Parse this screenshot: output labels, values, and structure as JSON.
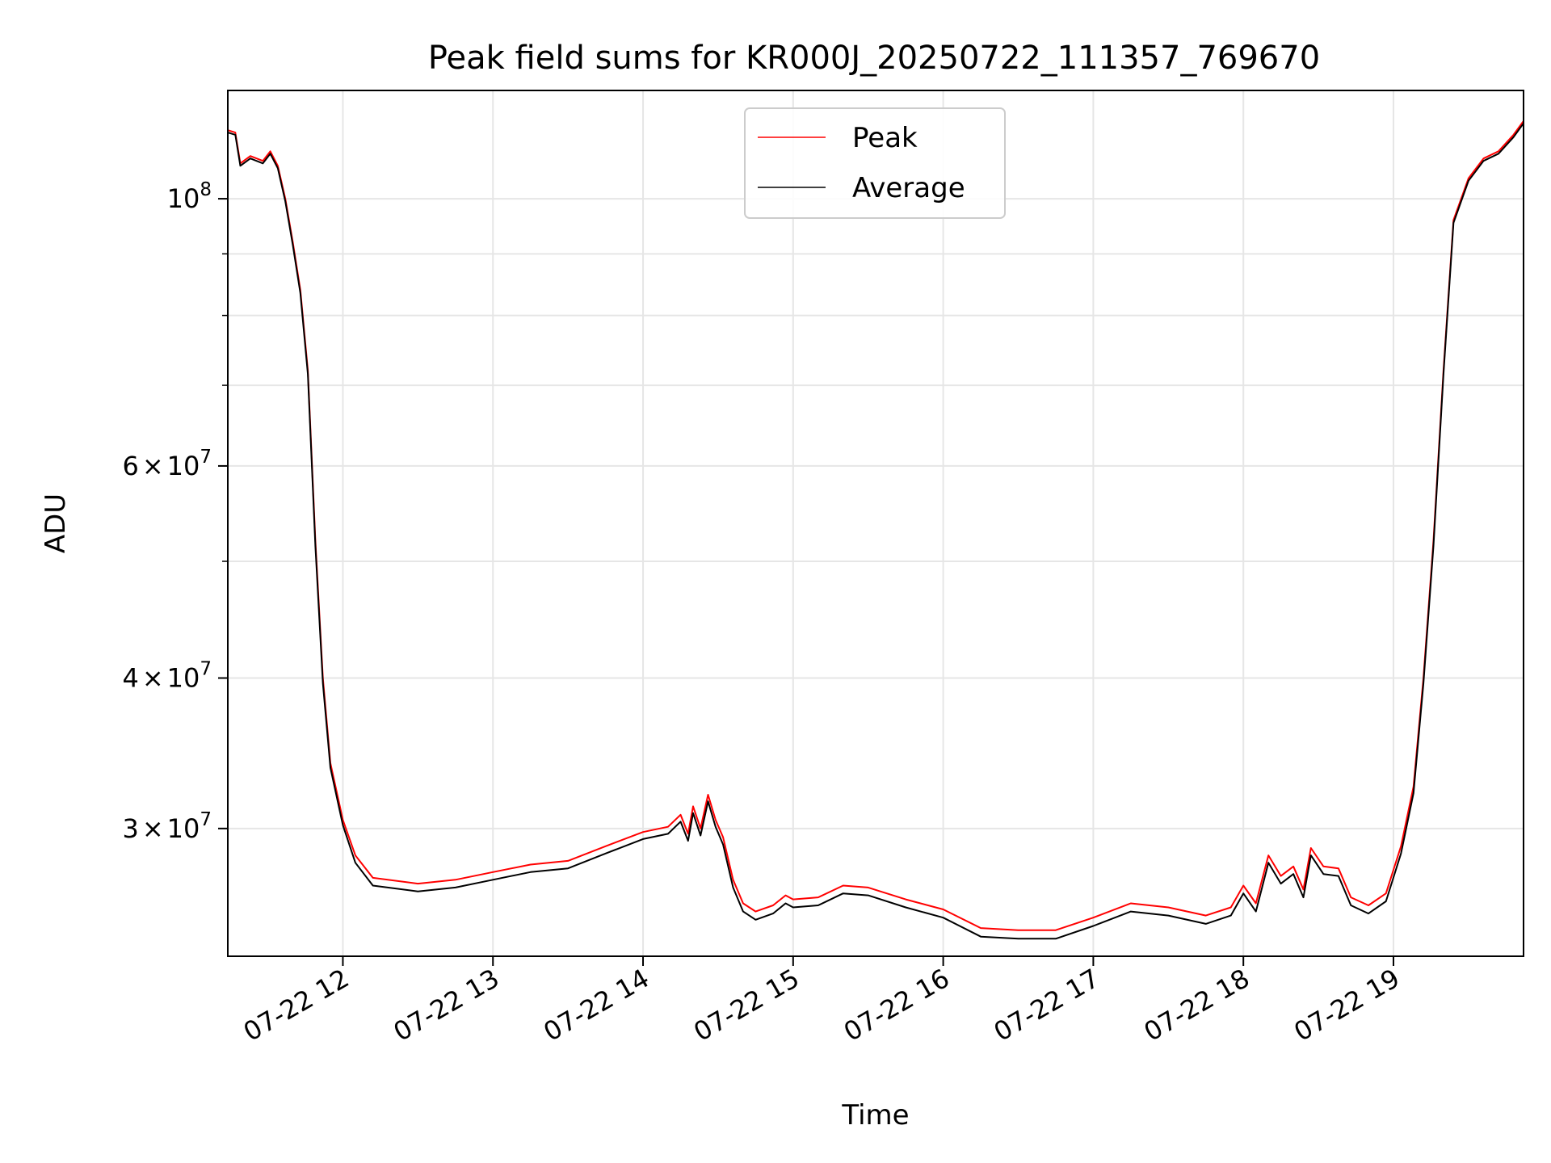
{
  "chart_data": {
    "type": "line",
    "title": "Peak field sums for KR000J_20250722_111357_769670",
    "xlabel": "Time",
    "ylabel": "ADU",
    "yscale": "log",
    "grid": true,
    "legend_position": "top-center",
    "x_range": [
      "2025-07-22 11:14",
      "2025-07-22 19:52"
    ],
    "ylim": [
      23500000,
      123000000
    ],
    "x_ticks": [
      {
        "value": "2025-07-22 12:00",
        "label": "07-22 12"
      },
      {
        "value": "2025-07-22 13:00",
        "label": "07-22 13"
      },
      {
        "value": "2025-07-22 14:00",
        "label": "07-22 14"
      },
      {
        "value": "2025-07-22 15:00",
        "label": "07-22 15"
      },
      {
        "value": "2025-07-22 16:00",
        "label": "07-22 16"
      },
      {
        "value": "2025-07-22 17:00",
        "label": "07-22 17"
      },
      {
        "value": "2025-07-22 18:00",
        "label": "07-22 18"
      },
      {
        "value": "2025-07-22 19:00",
        "label": "07-22 19"
      }
    ],
    "y_ticks": [
      {
        "value": 30000000,
        "label_mant": "3",
        "label_times": "×",
        "label_base": "10",
        "label_exp": "7"
      },
      {
        "value": 40000000,
        "label_mant": "4",
        "label_times": "×",
        "label_base": "10",
        "label_exp": "7"
      },
      {
        "value": 60000000,
        "label_mant": "6",
        "label_times": "×",
        "label_base": "10",
        "label_exp": "7"
      },
      {
        "value": 100000000,
        "label_mant": "",
        "label_times": "",
        "label_base": "10",
        "label_exp": "8"
      }
    ],
    "y_minor_ticks": [
      50000000,
      70000000,
      80000000,
      90000000
    ],
    "series": [
      {
        "name": "Peak",
        "color": "#ff0000",
        "points": [
          [
            "2025-07-22 11:14",
            114000000
          ],
          [
            "2025-07-22 11:17",
            113500000
          ],
          [
            "2025-07-22 11:19",
            107000000
          ],
          [
            "2025-07-22 11:23",
            108500000
          ],
          [
            "2025-07-22 11:28",
            107500000
          ],
          [
            "2025-07-22 11:31",
            109500000
          ],
          [
            "2025-07-22 11:34",
            106500000
          ],
          [
            "2025-07-22 11:37",
            100000000
          ],
          [
            "2025-07-22 11:40",
            92000000
          ],
          [
            "2025-07-22 11:43",
            84000000
          ],
          [
            "2025-07-22 11:46",
            72000000
          ],
          [
            "2025-07-22 11:49",
            52000000
          ],
          [
            "2025-07-22 11:52",
            40000000
          ],
          [
            "2025-07-22 11:55",
            34000000
          ],
          [
            "2025-07-22 12:00",
            30500000
          ],
          [
            "2025-07-22 12:05",
            28500000
          ],
          [
            "2025-07-22 12:12",
            27300000
          ],
          [
            "2025-07-22 12:30",
            27000000
          ],
          [
            "2025-07-22 12:45",
            27200000
          ],
          [
            "2025-07-22 13:00",
            27600000
          ],
          [
            "2025-07-22 13:15",
            28000000
          ],
          [
            "2025-07-22 13:30",
            28200000
          ],
          [
            "2025-07-22 13:45",
            29000000
          ],
          [
            "2025-07-22 14:00",
            29800000
          ],
          [
            "2025-07-22 14:10",
            30100000
          ],
          [
            "2025-07-22 14:15",
            30800000
          ],
          [
            "2025-07-22 14:18",
            29700000
          ],
          [
            "2025-07-22 14:20",
            31300000
          ],
          [
            "2025-07-22 14:23",
            30000000
          ],
          [
            "2025-07-22 14:26",
            32000000
          ],
          [
            "2025-07-22 14:29",
            30500000
          ],
          [
            "2025-07-22 14:32",
            29500000
          ],
          [
            "2025-07-22 14:36",
            27200000
          ],
          [
            "2025-07-22 14:40",
            26000000
          ],
          [
            "2025-07-22 14:45",
            25600000
          ],
          [
            "2025-07-22 14:52",
            25900000
          ],
          [
            "2025-07-22 14:57",
            26400000
          ],
          [
            "2025-07-22 15:00",
            26200000
          ],
          [
            "2025-07-22 15:10",
            26300000
          ],
          [
            "2025-07-22 15:20",
            26900000
          ],
          [
            "2025-07-22 15:30",
            26800000
          ],
          [
            "2025-07-22 15:45",
            26200000
          ],
          [
            "2025-07-22 16:00",
            25700000
          ],
          [
            "2025-07-22 16:15",
            24800000
          ],
          [
            "2025-07-22 16:30",
            24700000
          ],
          [
            "2025-07-22 16:45",
            24700000
          ],
          [
            "2025-07-22 17:00",
            25300000
          ],
          [
            "2025-07-22 17:15",
            26000000
          ],
          [
            "2025-07-22 17:30",
            25800000
          ],
          [
            "2025-07-22 17:45",
            25400000
          ],
          [
            "2025-07-22 17:55",
            25800000
          ],
          [
            "2025-07-22 18:00",
            26900000
          ],
          [
            "2025-07-22 18:05",
            26000000
          ],
          [
            "2025-07-22 18:10",
            28500000
          ],
          [
            "2025-07-22 18:15",
            27400000
          ],
          [
            "2025-07-22 18:20",
            27900000
          ],
          [
            "2025-07-22 18:24",
            26700000
          ],
          [
            "2025-07-22 18:27",
            28900000
          ],
          [
            "2025-07-22 18:32",
            27900000
          ],
          [
            "2025-07-22 18:38",
            27800000
          ],
          [
            "2025-07-22 18:43",
            26300000
          ],
          [
            "2025-07-22 18:50",
            25900000
          ],
          [
            "2025-07-22 18:57",
            26500000
          ],
          [
            "2025-07-22 19:03",
            29000000
          ],
          [
            "2025-07-22 19:08",
            32500000
          ],
          [
            "2025-07-22 19:12",
            40000000
          ],
          [
            "2025-07-22 19:16",
            52000000
          ],
          [
            "2025-07-22 19:20",
            72000000
          ],
          [
            "2025-07-22 19:24",
            96000000
          ],
          [
            "2025-07-22 19:30",
            104000000
          ],
          [
            "2025-07-22 19:36",
            108000000
          ],
          [
            "2025-07-22 19:42",
            109500000
          ],
          [
            "2025-07-22 19:48",
            113000000
          ],
          [
            "2025-07-22 19:52",
            116000000
          ]
        ]
      },
      {
        "name": "Average",
        "color": "#000000",
        "points": [
          [
            "2025-07-22 11:14",
            113500000
          ],
          [
            "2025-07-22 11:17",
            113000000
          ],
          [
            "2025-07-22 11:19",
            106500000
          ],
          [
            "2025-07-22 11:23",
            108000000
          ],
          [
            "2025-07-22 11:28",
            107000000
          ],
          [
            "2025-07-22 11:31",
            109000000
          ],
          [
            "2025-07-22 11:34",
            106000000
          ],
          [
            "2025-07-22 11:37",
            99500000
          ],
          [
            "2025-07-22 11:40",
            91500000
          ],
          [
            "2025-07-22 11:43",
            83500000
          ],
          [
            "2025-07-22 11:46",
            71500000
          ],
          [
            "2025-07-22 11:49",
            51500000
          ],
          [
            "2025-07-22 11:52",
            39600000
          ],
          [
            "2025-07-22 11:55",
            33700000
          ],
          [
            "2025-07-22 12:00",
            30200000
          ],
          [
            "2025-07-22 12:05",
            28100000
          ],
          [
            "2025-07-22 12:12",
            26900000
          ],
          [
            "2025-07-22 12:30",
            26600000
          ],
          [
            "2025-07-22 12:45",
            26800000
          ],
          [
            "2025-07-22 13:00",
            27200000
          ],
          [
            "2025-07-22 13:15",
            27600000
          ],
          [
            "2025-07-22 13:30",
            27800000
          ],
          [
            "2025-07-22 13:45",
            28600000
          ],
          [
            "2025-07-22 14:00",
            29400000
          ],
          [
            "2025-07-22 14:10",
            29700000
          ],
          [
            "2025-07-22 14:15",
            30400000
          ],
          [
            "2025-07-22 14:18",
            29300000
          ],
          [
            "2025-07-22 14:20",
            30900000
          ],
          [
            "2025-07-22 14:23",
            29600000
          ],
          [
            "2025-07-22 14:26",
            31600000
          ],
          [
            "2025-07-22 14:29",
            30100000
          ],
          [
            "2025-07-22 14:32",
            29100000
          ],
          [
            "2025-07-22 14:36",
            26800000
          ],
          [
            "2025-07-22 14:40",
            25600000
          ],
          [
            "2025-07-22 14:45",
            25200000
          ],
          [
            "2025-07-22 14:52",
            25500000
          ],
          [
            "2025-07-22 14:57",
            26000000
          ],
          [
            "2025-07-22 15:00",
            25800000
          ],
          [
            "2025-07-22 15:10",
            25900000
          ],
          [
            "2025-07-22 15:20",
            26500000
          ],
          [
            "2025-07-22 15:30",
            26400000
          ],
          [
            "2025-07-22 15:45",
            25800000
          ],
          [
            "2025-07-22 16:00",
            25300000
          ],
          [
            "2025-07-22 16:15",
            24400000
          ],
          [
            "2025-07-22 16:30",
            24300000
          ],
          [
            "2025-07-22 16:45",
            24300000
          ],
          [
            "2025-07-22 17:00",
            24900000
          ],
          [
            "2025-07-22 17:15",
            25600000
          ],
          [
            "2025-07-22 17:30",
            25400000
          ],
          [
            "2025-07-22 17:45",
            25000000
          ],
          [
            "2025-07-22 17:55",
            25400000
          ],
          [
            "2025-07-22 18:00",
            26500000
          ],
          [
            "2025-07-22 18:05",
            25600000
          ],
          [
            "2025-07-22 18:10",
            28100000
          ],
          [
            "2025-07-22 18:15",
            27000000
          ],
          [
            "2025-07-22 18:20",
            27500000
          ],
          [
            "2025-07-22 18:24",
            26300000
          ],
          [
            "2025-07-22 18:27",
            28500000
          ],
          [
            "2025-07-22 18:32",
            27500000
          ],
          [
            "2025-07-22 18:38",
            27400000
          ],
          [
            "2025-07-22 18:43",
            25900000
          ],
          [
            "2025-07-22 18:50",
            25500000
          ],
          [
            "2025-07-22 18:57",
            26100000
          ],
          [
            "2025-07-22 19:03",
            28600000
          ],
          [
            "2025-07-22 19:08",
            32100000
          ],
          [
            "2025-07-22 19:12",
            39600000
          ],
          [
            "2025-07-22 19:16",
            51500000
          ],
          [
            "2025-07-22 19:20",
            71500000
          ],
          [
            "2025-07-22 19:24",
            95500000
          ],
          [
            "2025-07-22 19:30",
            103500000
          ],
          [
            "2025-07-22 19:36",
            107500000
          ],
          [
            "2025-07-22 19:42",
            109000000
          ],
          [
            "2025-07-22 19:48",
            112500000
          ],
          [
            "2025-07-22 19:52",
            115500000
          ]
        ]
      }
    ]
  }
}
